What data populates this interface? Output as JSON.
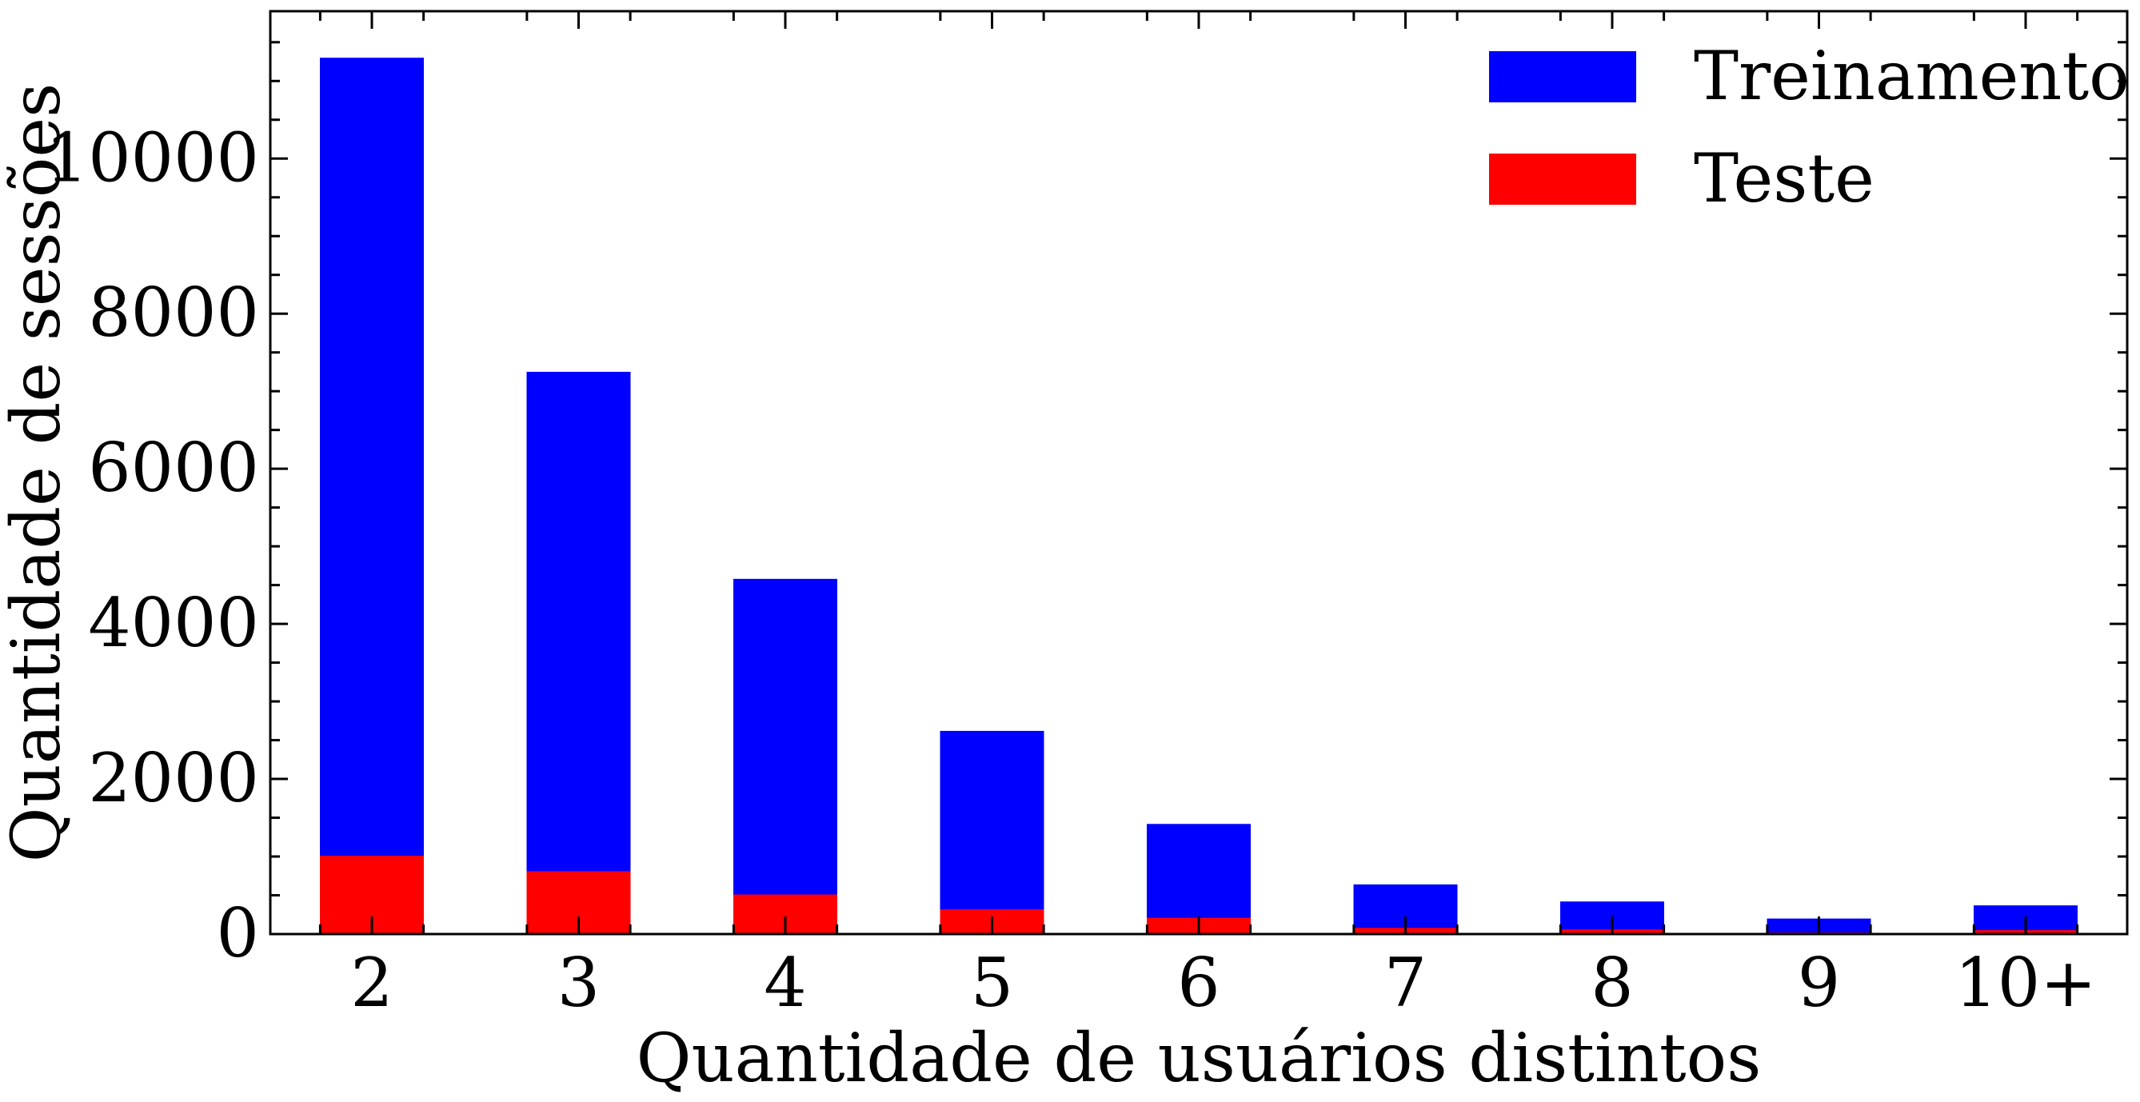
{
  "chart_data": {
    "type": "bar",
    "stacked": true,
    "categories": [
      "2",
      "3",
      "4",
      "5",
      "6",
      "7",
      "8",
      "9",
      "10+"
    ],
    "series": [
      {
        "name": "Treinamento",
        "color": "#0000ff",
        "values": [
          11300,
          7250,
          4580,
          2620,
          1420,
          640,
          420,
          200,
          370
        ]
      },
      {
        "name": "Teste",
        "color": "#ff0000",
        "values": [
          1010,
          810,
          510,
          320,
          210,
          80,
          60,
          20,
          50
        ]
      }
    ],
    "xlabel": "Quantidade de usuários distintos",
    "ylabel": "Quantidade de sessões",
    "ylim": [
      0,
      11900
    ],
    "yticks": [
      "0",
      "2000",
      "4000",
      "6000",
      "8000",
      "10000"
    ],
    "ytick_values": [
      0,
      2000,
      4000,
      6000,
      8000,
      10000
    ],
    "y_minor_step": 500,
    "legend_position": "top-right",
    "grid": false
  }
}
